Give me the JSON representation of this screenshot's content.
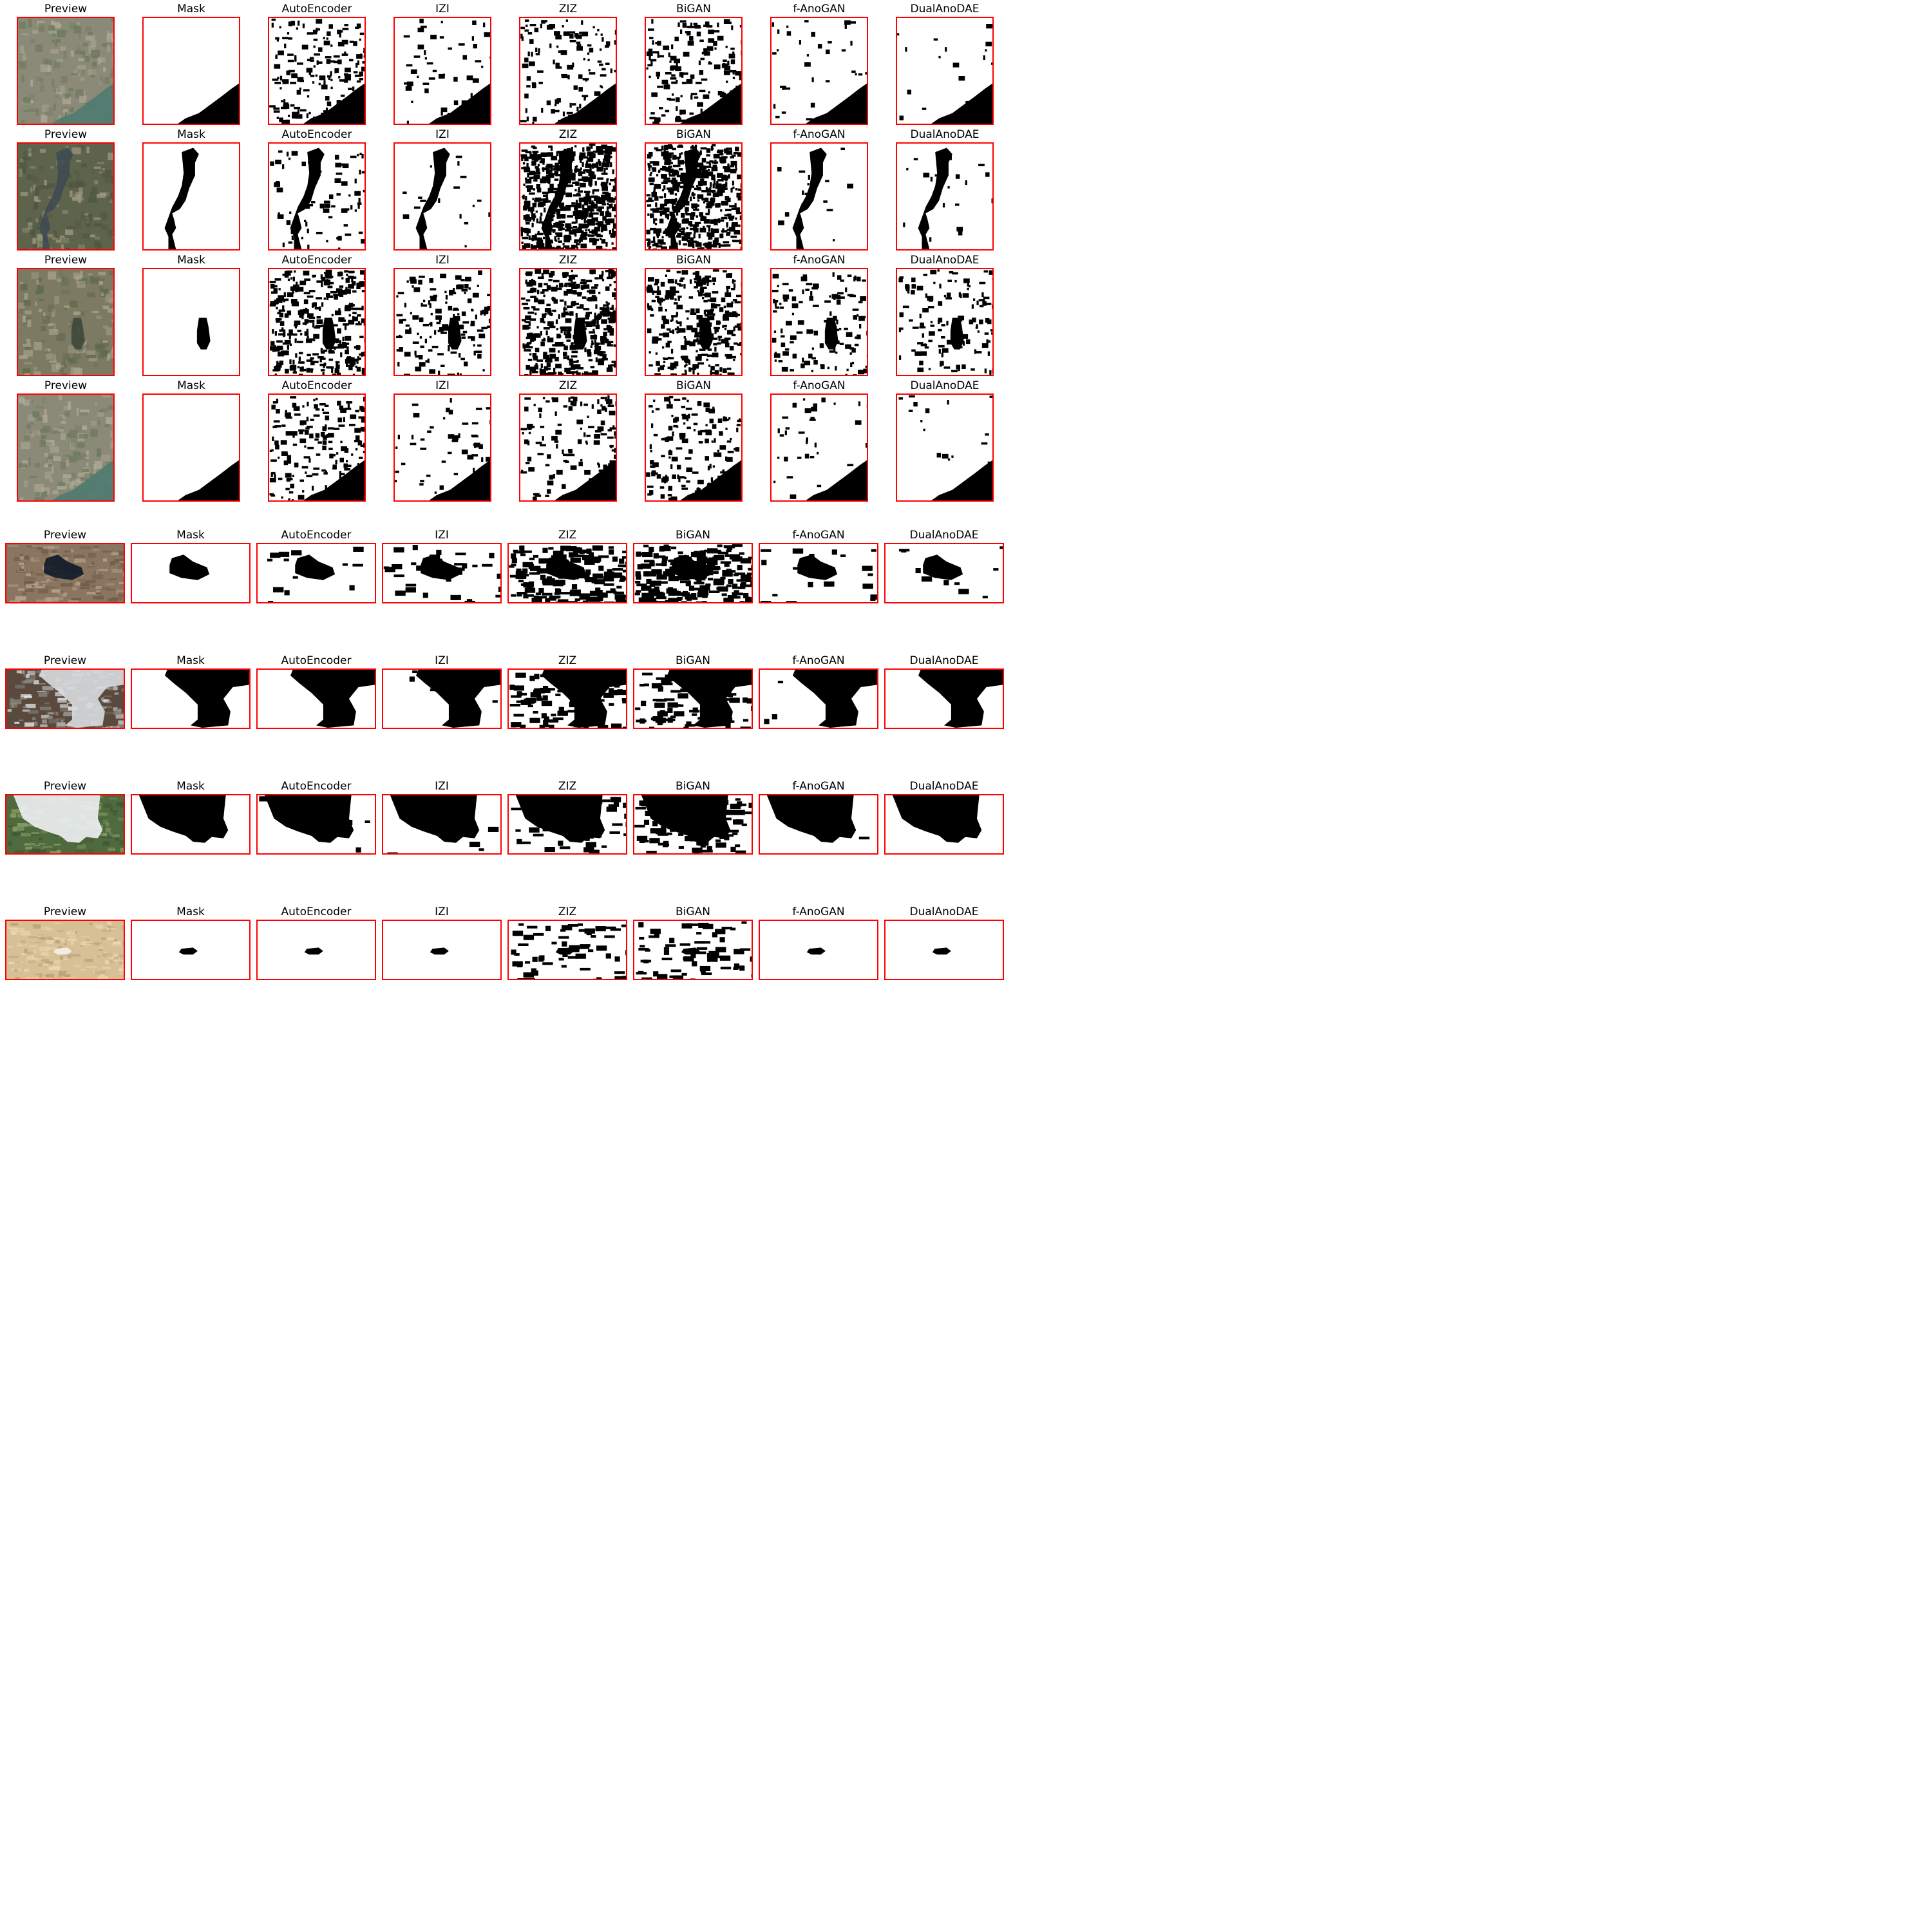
{
  "figure": {
    "column_titles": [
      "Preview",
      "Mask",
      "AutoEncoder",
      "IZI",
      "ZIZ",
      "BiGAN",
      "f-AnoGAN",
      "DualAnoDAE"
    ],
    "frame_color": "#ff0000",
    "rows": [
      {
        "preview": "urban-river-aerial",
        "panel_content": "binary-mask",
        "titles": [
          "Preview",
          "Mask",
          "AutoEncoder",
          "IZI",
          "ZIZ",
          "BiGAN",
          "f-AnoGAN",
          "DualAnoDAE"
        ]
      },
      {
        "preview": "forest-lake-aerial",
        "panel_content": "binary-mask",
        "titles": [
          "Preview",
          "Mask",
          "AutoEncoder",
          "IZI",
          "ZIZ",
          "BiGAN",
          "f-AnoGAN",
          "DualAnoDAE"
        ]
      },
      {
        "preview": "rural-lake-aerial",
        "panel_content": "binary-mask",
        "titles": [
          "Preview",
          "Mask",
          "AutoEncoder",
          "IZI",
          "ZIZ",
          "BiGAN",
          "f-AnoGAN",
          "DualAnoDAE"
        ]
      },
      {
        "preview": "urban-river-aerial",
        "panel_content": "binary-mask",
        "titles": [
          "Preview",
          "Mask",
          "AutoEncoder",
          "IZI",
          "ZIZ",
          "BiGAN",
          "f-AnoGAN",
          "DualAnoDAE"
        ]
      },
      {
        "preview": "mountain-cloud-shadow",
        "panel_content": "binary-mask",
        "titles": [
          "Preview",
          "Mask",
          "AutoEncoder",
          "IZI",
          "ZIZ",
          "BiGAN",
          "f-AnoGAN",
          "DualAnoDAE"
        ]
      },
      {
        "preview": "snowy-mountain-cloud",
        "panel_content": "binary-mask",
        "titles": [
          "Preview",
          "Mask",
          "AutoEncoder",
          "IZI",
          "ZIZ",
          "BiGAN",
          "f-AnoGAN",
          "DualAnoDAE"
        ]
      },
      {
        "preview": "green-hills-cloud",
        "panel_content": "binary-mask",
        "titles": [
          "Preview",
          "Mask",
          "AutoEncoder",
          "IZI",
          "ZIZ",
          "BiGAN",
          "f-AnoGAN",
          "DualAnoDAE"
        ]
      },
      {
        "preview": "desert-small-cloud",
        "panel_content": "binary-mask",
        "titles": [
          "Preview",
          "Mask",
          "AutoEncoder",
          "IZI",
          "ZIZ",
          "BiGAN",
          "f-AnoGAN",
          "DualAnoDAE"
        ]
      }
    ]
  }
}
